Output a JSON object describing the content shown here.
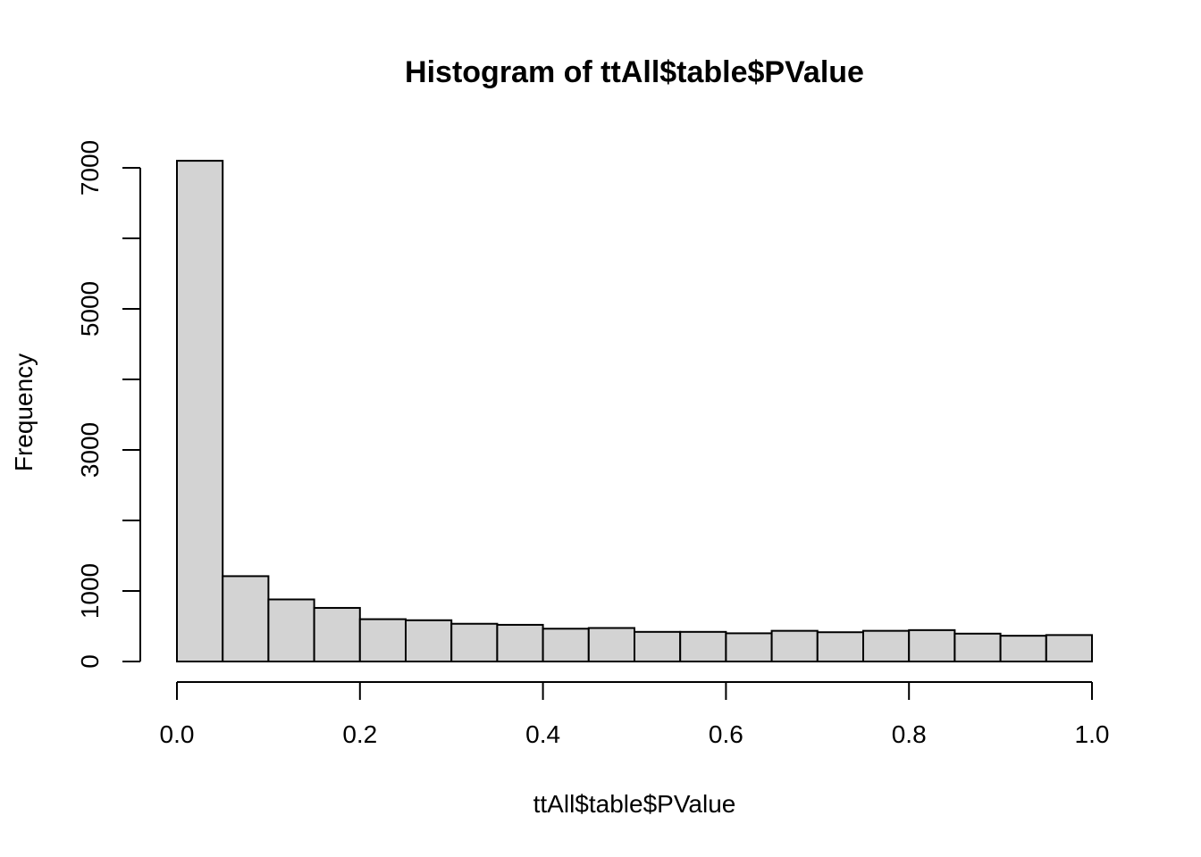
{
  "chart_data": {
    "type": "bar",
    "title": "Histogram of ttAll$table$PValue",
    "xlabel": "ttAll$table$PValue",
    "ylabel": "Frequency",
    "xlim": [
      0,
      1
    ],
    "ylim": [
      0,
      7100
    ],
    "bin_width": 0.05,
    "bin_edges": [
      0,
      0.05,
      0.1,
      0.15,
      0.2,
      0.25,
      0.3,
      0.35,
      0.4,
      0.45,
      0.5,
      0.55,
      0.6,
      0.65,
      0.7,
      0.75,
      0.8,
      0.85,
      0.9,
      0.95,
      1.0
    ],
    "values": [
      7100,
      1210,
      880,
      760,
      600,
      585,
      535,
      520,
      465,
      475,
      420,
      420,
      400,
      435,
      415,
      435,
      445,
      395,
      365,
      375
    ],
    "x_ticks": [
      0,
      0.2,
      0.4,
      0.6,
      0.8,
      1.0
    ],
    "x_tick_labels": [
      "0.0",
      "0.2",
      "0.4",
      "0.6",
      "0.8",
      "1.0"
    ],
    "y_ticks": [
      0,
      1000,
      2000,
      3000,
      4000,
      5000,
      6000,
      7000
    ],
    "y_tick_labels": [
      "0",
      "1000",
      "",
      "3000",
      "",
      "5000",
      "",
      "7000"
    ],
    "bar_color": "#d3d3d3",
    "grid": false,
    "legend": "none"
  }
}
